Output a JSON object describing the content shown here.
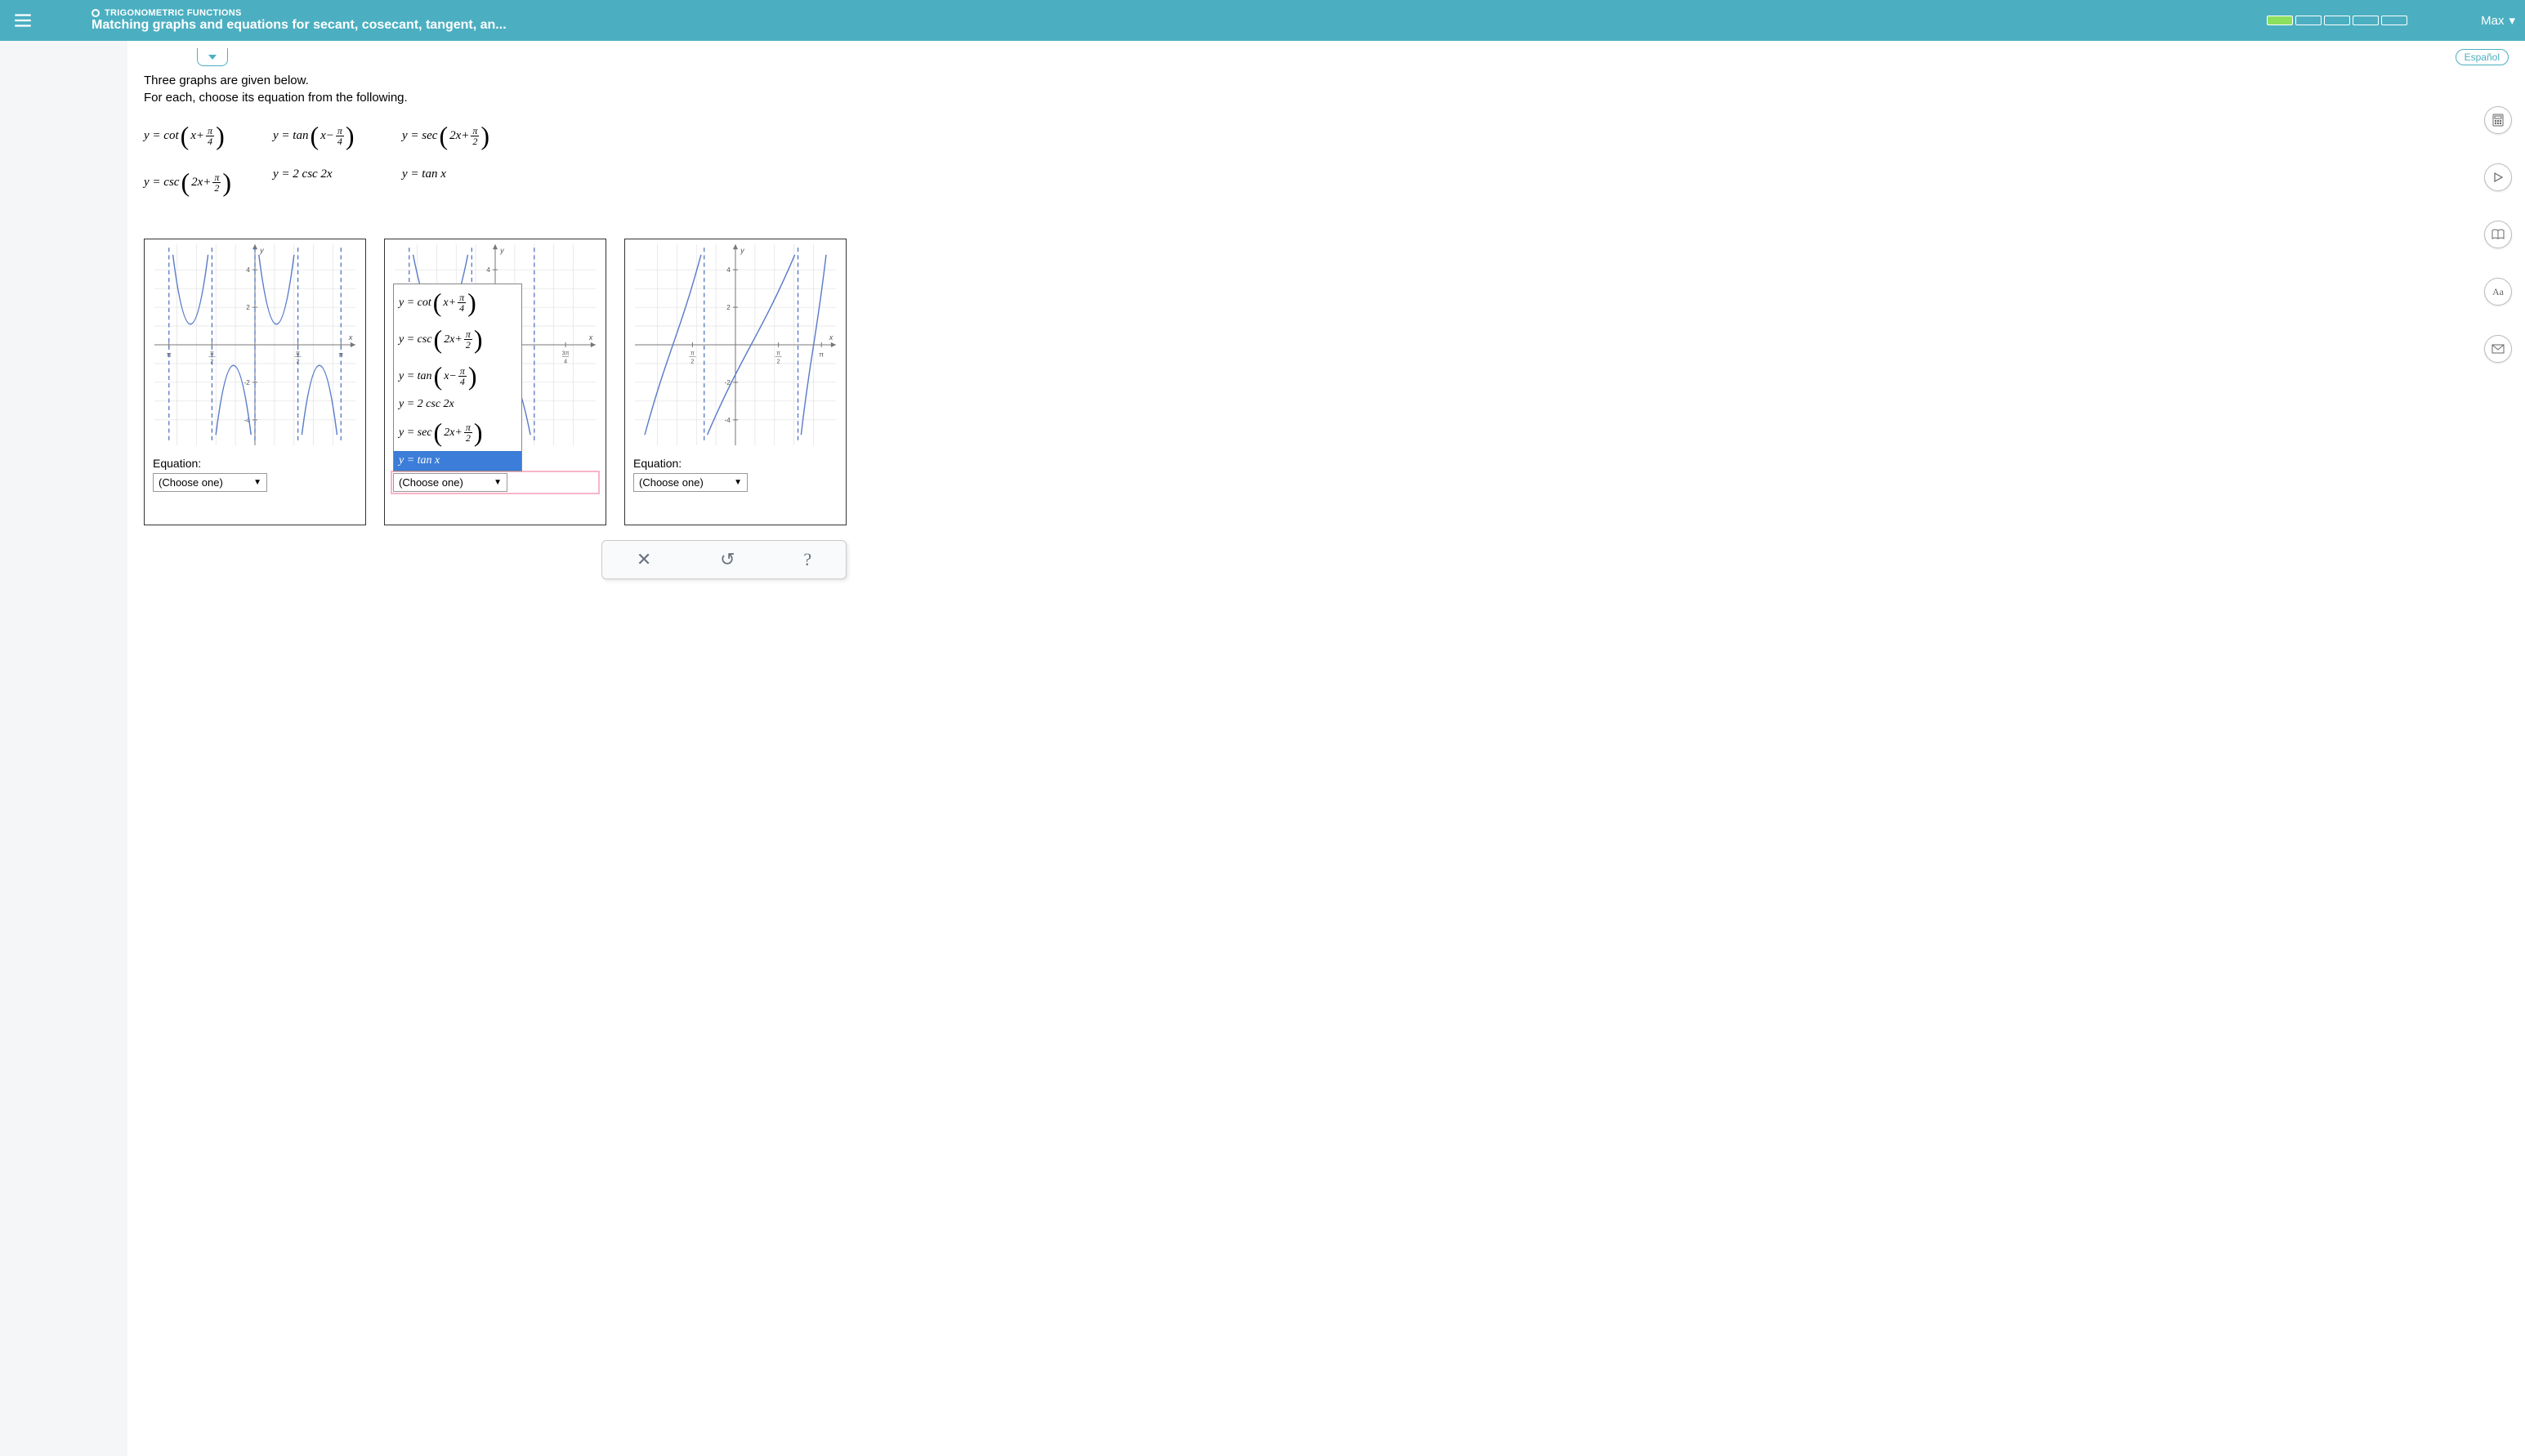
{
  "header": {
    "category": "TRIGONOMETRIC FUNCTIONS",
    "title": "Matching graphs and equations for secant, cosecant, tangent, an...",
    "user": "Max",
    "progress": {
      "segments": 5,
      "filled": 1
    }
  },
  "language_button": "Español",
  "prompt": {
    "line1": "Three graphs are given below.",
    "line2": "For each, choose its equation from the following."
  },
  "equation_bank": [
    {
      "func": "cot",
      "inner": "x+",
      "frac_num": "π",
      "frac_den": "4"
    },
    {
      "func": "tan",
      "inner": "x−",
      "frac_num": "π",
      "frac_den": "4"
    },
    {
      "func": "sec",
      "inner": "2x+",
      "frac_num": "π",
      "frac_den": "2"
    },
    {
      "func": "csc",
      "inner": "2x+",
      "frac_num": "π",
      "frac_den": "2"
    },
    {
      "plain": "y = 2 csc 2x"
    },
    {
      "plain": "y = tan x"
    }
  ],
  "dropdown_placeholder": "(Choose one)",
  "dropdown_options": [
    {
      "func": "cot",
      "inner": "x+",
      "frac_num": "π",
      "frac_den": "4"
    },
    {
      "func": "csc",
      "inner": "2x+",
      "frac_num": "π",
      "frac_den": "2"
    },
    {
      "func": "tan",
      "inner": "x−",
      "frac_num": "π",
      "frac_den": "4"
    },
    {
      "plain": "y = 2 csc 2x"
    },
    {
      "func": "sec",
      "inner": "2x+",
      "frac_num": "π",
      "frac_den": "2"
    },
    {
      "plain": "y = tan x",
      "highlight": true
    }
  ],
  "graphs": [
    {
      "label": "Equation:",
      "type": "csc",
      "curve_color": "#5b7cc9",
      "asymptote_color": "#4a6fbf",
      "grid_color": "#d6d6d6",
      "axis_color": "#777",
      "background": "#ffffff",
      "xlim": [
        -120,
        120
      ],
      "ylim": [
        -5,
        5
      ],
      "ytick_step": 2,
      "asymptote_x": [
        -110,
        -55,
        0,
        55,
        110
      ],
      "x_ticks": [
        {
          "x": -110,
          "label": "π"
        },
        {
          "x": -55,
          "label": "π",
          "frac_den": "2"
        },
        {
          "x": 55,
          "label": "π",
          "frac_den": "2"
        },
        {
          "x": 110,
          "label": "π"
        }
      ]
    },
    {
      "label": "Equation:",
      "dropdown_open": true,
      "type": "csc",
      "curve_color": "#5b7cc9",
      "asymptote_color": "#4a6fbf",
      "grid_color": "#d6d6d6",
      "axis_color": "#777",
      "background": "#ffffff",
      "xlim": [
        -120,
        120
      ],
      "ylim": [
        -5,
        5
      ],
      "ytick_step": 2,
      "asymptote_x": [
        -110,
        -30,
        50
      ],
      "x_ticks": [
        {
          "x": 90,
          "label": "3π",
          "frac_den": "4"
        }
      ]
    },
    {
      "label": "Equation:",
      "type": "tan",
      "curve_color": "#5b7cc9",
      "asymptote_color": "#4a6fbf",
      "grid_color": "#d6d6d6",
      "axis_color": "#777",
      "background": "#ffffff",
      "xlim": [
        -120,
        120
      ],
      "ylim": [
        -5,
        5
      ],
      "ytick_step": 2,
      "asymptote_x": [
        -40,
        80
      ],
      "x_ticks": [
        {
          "x": -55,
          "label": "π",
          "frac_den": "2"
        },
        {
          "x": 55,
          "label": "π",
          "frac_den": "2"
        },
        {
          "x": 110,
          "label": "π"
        }
      ]
    }
  ],
  "action_buttons": [
    "clear",
    "reset",
    "help"
  ],
  "tools": [
    "calculator",
    "play",
    "book",
    "text-size",
    "mail"
  ]
}
